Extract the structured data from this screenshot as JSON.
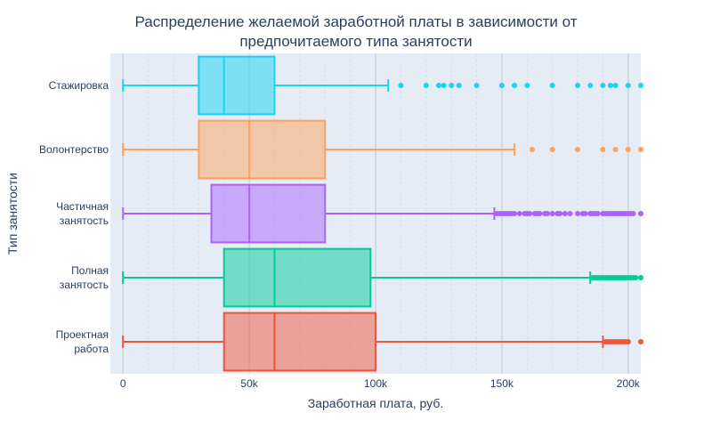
{
  "chart_data": {
    "type": "box",
    "orientation": "horizontal",
    "title_lines": [
      "Распределение желаемой заработной платы в зависимости от",
      "предпочитаемого типа занятости"
    ],
    "xlabel": "Заработная плата, руб.",
    "ylabel": "Тип занятости",
    "xlim": [
      -5000,
      205000
    ],
    "x_ticks": [
      {
        "value": 0,
        "label": "0"
      },
      {
        "value": 50000,
        "label": "50k"
      },
      {
        "value": 100000,
        "label": "100k"
      },
      {
        "value": 150000,
        "label": "150k"
      },
      {
        "value": 200000,
        "label": "200k"
      }
    ],
    "x_minor_ticks": [
      10000,
      20000,
      30000,
      40000,
      60000,
      70000,
      80000,
      90000,
      110000,
      120000,
      130000,
      140000,
      160000,
      170000,
      180000,
      190000
    ],
    "grid": true,
    "series": [
      {
        "name": "Стажировка",
        "label_lines": [
          "Стажировка"
        ],
        "color": "#19d3f3",
        "whisker_low": 0,
        "q1": 30000,
        "median": 40000,
        "q3": 60000,
        "whisker_high": 105000,
        "outliers": [
          110000,
          120000,
          125000,
          127000,
          130000,
          133000,
          140000,
          150000,
          155000,
          160000,
          170000,
          180000,
          185000,
          190000,
          193000,
          195000,
          200000,
          205000
        ]
      },
      {
        "name": "Волонтерство",
        "label_lines": [
          "Волонтерство"
        ],
        "color": "#ffa15a",
        "whisker_low": 0,
        "q1": 30000,
        "median": 50000,
        "q3": 80000,
        "whisker_high": 155000,
        "outliers": [
          162000,
          170000,
          180000,
          190000,
          195000,
          200000,
          205000
        ]
      },
      {
        "name": "Частичная занятость",
        "label_lines": [
          "Частичная",
          "занятость"
        ],
        "color": "#ab63fa",
        "whisker_low": 0,
        "q1": 35000,
        "median": 50000,
        "q3": 80000,
        "whisker_high": 147000,
        "outliers": [
          148000,
          149000,
          150000,
          151000,
          152000,
          153000,
          154000,
          155000,
          157000,
          159000,
          160000,
          161000,
          163000,
          164000,
          165000,
          167000,
          168000,
          170000,
          172000,
          173000,
          175000,
          177000,
          180000,
          182000,
          183000,
          185000,
          186000,
          187000,
          188000,
          190000,
          191000,
          192000,
          193000,
          194000,
          195000,
          196000,
          197000,
          198000,
          199000,
          200000,
          201000,
          202000,
          205000
        ]
      },
      {
        "name": "Полная занятость",
        "label_lines": [
          "Полная",
          "занятость"
        ],
        "color": "#00cc96",
        "whisker_low": 0,
        "q1": 40000,
        "median": 60000,
        "q3": 98000,
        "whisker_high": 185000,
        "outliers": [
          186000,
          187000,
          188000,
          189000,
          190000,
          191000,
          192000,
          193000,
          194000,
          195000,
          196000,
          197000,
          198000,
          199000,
          200000,
          201000,
          202000,
          203000,
          205000
        ]
      },
      {
        "name": "Проектная работа",
        "label_lines": [
          "Проектная",
          "работа"
        ],
        "color": "#ef553b",
        "whisker_low": 0,
        "q1": 40000,
        "median": 60000,
        "q3": 100000,
        "whisker_high": 190000,
        "outliers": [
          191000,
          192000,
          193000,
          194000,
          195000,
          196000,
          197000,
          198000,
          199000,
          200000,
          205000
        ]
      }
    ]
  }
}
